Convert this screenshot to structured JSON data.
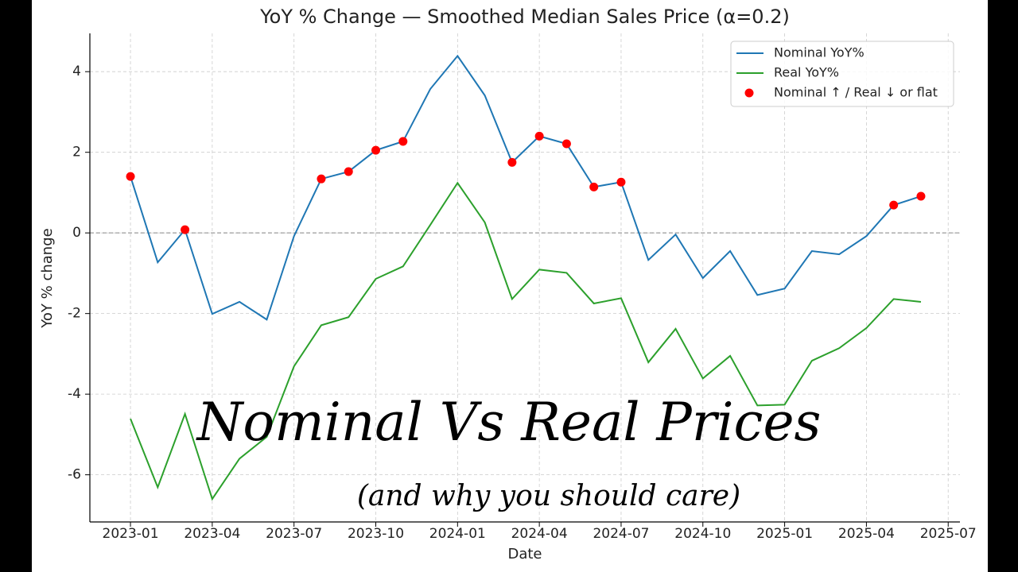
{
  "chart_data": {
    "type": "line",
    "title": "YoY % Change — Smoothed Median Sales Price (α=0.2)",
    "x_label": "Date",
    "y_label": "YoY % change",
    "x": [
      "2023-01",
      "2023-02",
      "2023-03",
      "2023-04",
      "2023-05",
      "2023-06",
      "2023-07",
      "2023-08",
      "2023-09",
      "2023-10",
      "2023-11",
      "2023-12",
      "2024-01",
      "2024-02",
      "2024-03",
      "2024-04",
      "2024-05",
      "2024-06",
      "2024-07",
      "2024-08",
      "2024-09",
      "2024-10",
      "2024-11",
      "2024-12",
      "2025-01",
      "2025-02",
      "2025-03",
      "2025-04",
      "2025-05",
      "2025-06"
    ],
    "series": [
      {
        "name": "Nominal YoY%",
        "color": "#1f77b4",
        "kind": "line",
        "values": [
          1.4,
          -0.73,
          0.08,
          -2.01,
          -1.71,
          -2.15,
          -0.08,
          1.34,
          1.52,
          2.05,
          2.27,
          3.57,
          4.39,
          3.41,
          1.75,
          2.4,
          2.21,
          1.14,
          1.26,
          -0.67,
          -0.04,
          -1.12,
          -0.45,
          -1.54,
          -1.38,
          -0.45,
          -0.53,
          -0.08,
          0.69,
          0.91
        ]
      },
      {
        "name": "Real YoY%",
        "color": "#2ca02c",
        "kind": "line",
        "values": [
          -4.61,
          -6.31,
          -4.49,
          -6.6,
          -5.6,
          -5.06,
          -3.31,
          -2.29,
          -2.09,
          -1.14,
          -0.83,
          0.2,
          1.24,
          0.26,
          -1.64,
          -0.91,
          -0.99,
          -1.75,
          -1.62,
          -3.21,
          -2.38,
          -3.61,
          -3.05,
          -4.28,
          -4.26,
          -3.17,
          -2.86,
          -2.36,
          -1.64,
          -1.71
        ]
      },
      {
        "name": "Nominal ↑ / Real ↓ or flat",
        "color": "#ff0000",
        "kind": "scatter",
        "values": [
          1.4,
          null,
          0.08,
          null,
          null,
          null,
          null,
          1.34,
          1.52,
          2.05,
          2.27,
          null,
          null,
          null,
          1.75,
          2.4,
          2.21,
          1.14,
          1.26,
          null,
          null,
          null,
          null,
          null,
          null,
          null,
          null,
          null,
          0.69,
          0.91
        ]
      }
    ],
    "xlim": [
      "2022-11",
      "2025-08"
    ],
    "xticks": [
      "2023-01",
      "2023-04",
      "2023-07",
      "2023-10",
      "2024-01",
      "2024-04",
      "2024-07",
      "2024-10",
      "2025-01",
      "2025-04",
      "2025-07"
    ],
    "ylim": [
      -7.17,
      4.95
    ],
    "yticks": [
      -6,
      -4,
      -2,
      0,
      2,
      4
    ],
    "hline": 0,
    "grid": true,
    "legend": "upper right",
    "annotations": [
      "Nominal Vs Real Prices",
      "(and why you should care)"
    ]
  }
}
